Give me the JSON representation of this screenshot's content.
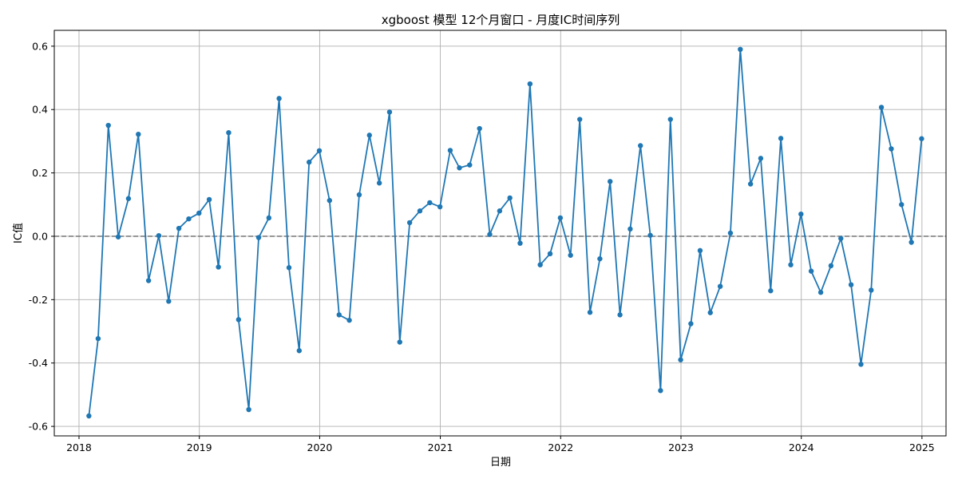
{
  "chart_data": {
    "type": "line",
    "title": "xgboost 模型 12个月窗口 - 月度IC时间序列",
    "xlabel": "日期",
    "ylabel": "IC值",
    "xlim": [
      "2017-10-18",
      "2025-03-15"
    ],
    "ylim": [
      -0.63,
      0.65
    ],
    "x_ticks": [
      "2018-01-01",
      "2019-01-01",
      "2020-01-01",
      "2021-01-01",
      "2022-01-01",
      "2023-01-01",
      "2024-01-01",
      "2025-01-01"
    ],
    "x_tick_labels": [
      "2018",
      "2019",
      "2020",
      "2021",
      "2022",
      "2023",
      "2024",
      "2025"
    ],
    "y_ticks": [
      -0.6,
      -0.4,
      -0.2,
      0.0,
      0.2,
      0.4,
      0.6
    ],
    "y_tick_labels": [
      "-0.6",
      "-0.4",
      "-0.2",
      "0.0",
      "0.2",
      "0.4",
      "0.6"
    ],
    "grid": true,
    "reference_line": {
      "y": 0.0,
      "style": "dashed",
      "color": "#808080"
    },
    "series_color": "#1f77b4",
    "series": [
      {
        "x": [
          "2018-01-31",
          "2018-02-28",
          "2018-03-31",
          "2018-04-30",
          "2018-05-31",
          "2018-06-30",
          "2018-07-31",
          "2018-08-31",
          "2018-09-30",
          "2018-10-31",
          "2018-11-30",
          "2018-12-31",
          "2019-01-31",
          "2019-02-28",
          "2019-03-31",
          "2019-04-30",
          "2019-05-31",
          "2019-06-30",
          "2019-07-31",
          "2019-08-31",
          "2019-09-30",
          "2019-10-31",
          "2019-11-30",
          "2019-12-31",
          "2020-01-31",
          "2020-02-29",
          "2020-03-31",
          "2020-04-30",
          "2020-05-31",
          "2020-06-30",
          "2020-07-31",
          "2020-08-31",
          "2020-09-30",
          "2020-10-31",
          "2020-11-30",
          "2020-12-31",
          "2021-01-31",
          "2021-02-28",
          "2021-03-31",
          "2021-04-30",
          "2021-05-31",
          "2021-06-30",
          "2021-07-31",
          "2021-08-31",
          "2021-09-30",
          "2021-10-31",
          "2021-11-30",
          "2021-12-31",
          "2022-01-31",
          "2022-02-28",
          "2022-03-31",
          "2022-04-30",
          "2022-05-31",
          "2022-06-30",
          "2022-07-31",
          "2022-08-31",
          "2022-09-30",
          "2022-10-31",
          "2022-11-30",
          "2022-12-31",
          "2023-01-31",
          "2023-02-28",
          "2023-03-31",
          "2023-04-30",
          "2023-05-31",
          "2023-06-30",
          "2023-07-31",
          "2023-08-31",
          "2023-09-30",
          "2023-10-31",
          "2023-11-30",
          "2023-12-31",
          "2024-01-31",
          "2024-02-29",
          "2024-03-31",
          "2024-04-30",
          "2024-05-31",
          "2024-06-30",
          "2024-07-31",
          "2024-08-31",
          "2024-09-30",
          "2024-10-31",
          "2024-11-30",
          "2024-12-31"
        ],
        "values": [
          -0.567,
          -0.323,
          0.35,
          -0.002,
          0.119,
          0.322,
          -0.14,
          0.002,
          -0.205,
          0.025,
          0.055,
          0.073,
          0.116,
          -0.097,
          0.327,
          -0.263,
          -0.547,
          -0.004,
          0.058,
          0.435,
          -0.099,
          -0.361,
          0.234,
          0.27,
          0.113,
          -0.248,
          -0.265,
          0.131,
          0.319,
          0.168,
          0.392,
          -0.334,
          0.043,
          0.08,
          0.106,
          0.093,
          0.271,
          0.216,
          0.225,
          0.34,
          0.006,
          0.08,
          0.121,
          -0.022,
          0.481,
          -0.09,
          -0.055,
          0.058,
          -0.06,
          0.369,
          -0.24,
          -0.071,
          0.173,
          -0.248,
          0.023,
          0.286,
          0.003,
          -0.487,
          0.369,
          -0.39,
          -0.276,
          -0.045,
          -0.241,
          -0.158,
          0.01,
          0.59,
          0.165,
          0.246,
          -0.172,
          0.309,
          -0.09,
          0.07,
          -0.11,
          -0.177,
          -0.093,
          -0.007,
          -0.153,
          -0.404,
          -0.17,
          0.407,
          0.276,
          0.1,
          -0.019,
          0.308
        ]
      }
    ]
  }
}
